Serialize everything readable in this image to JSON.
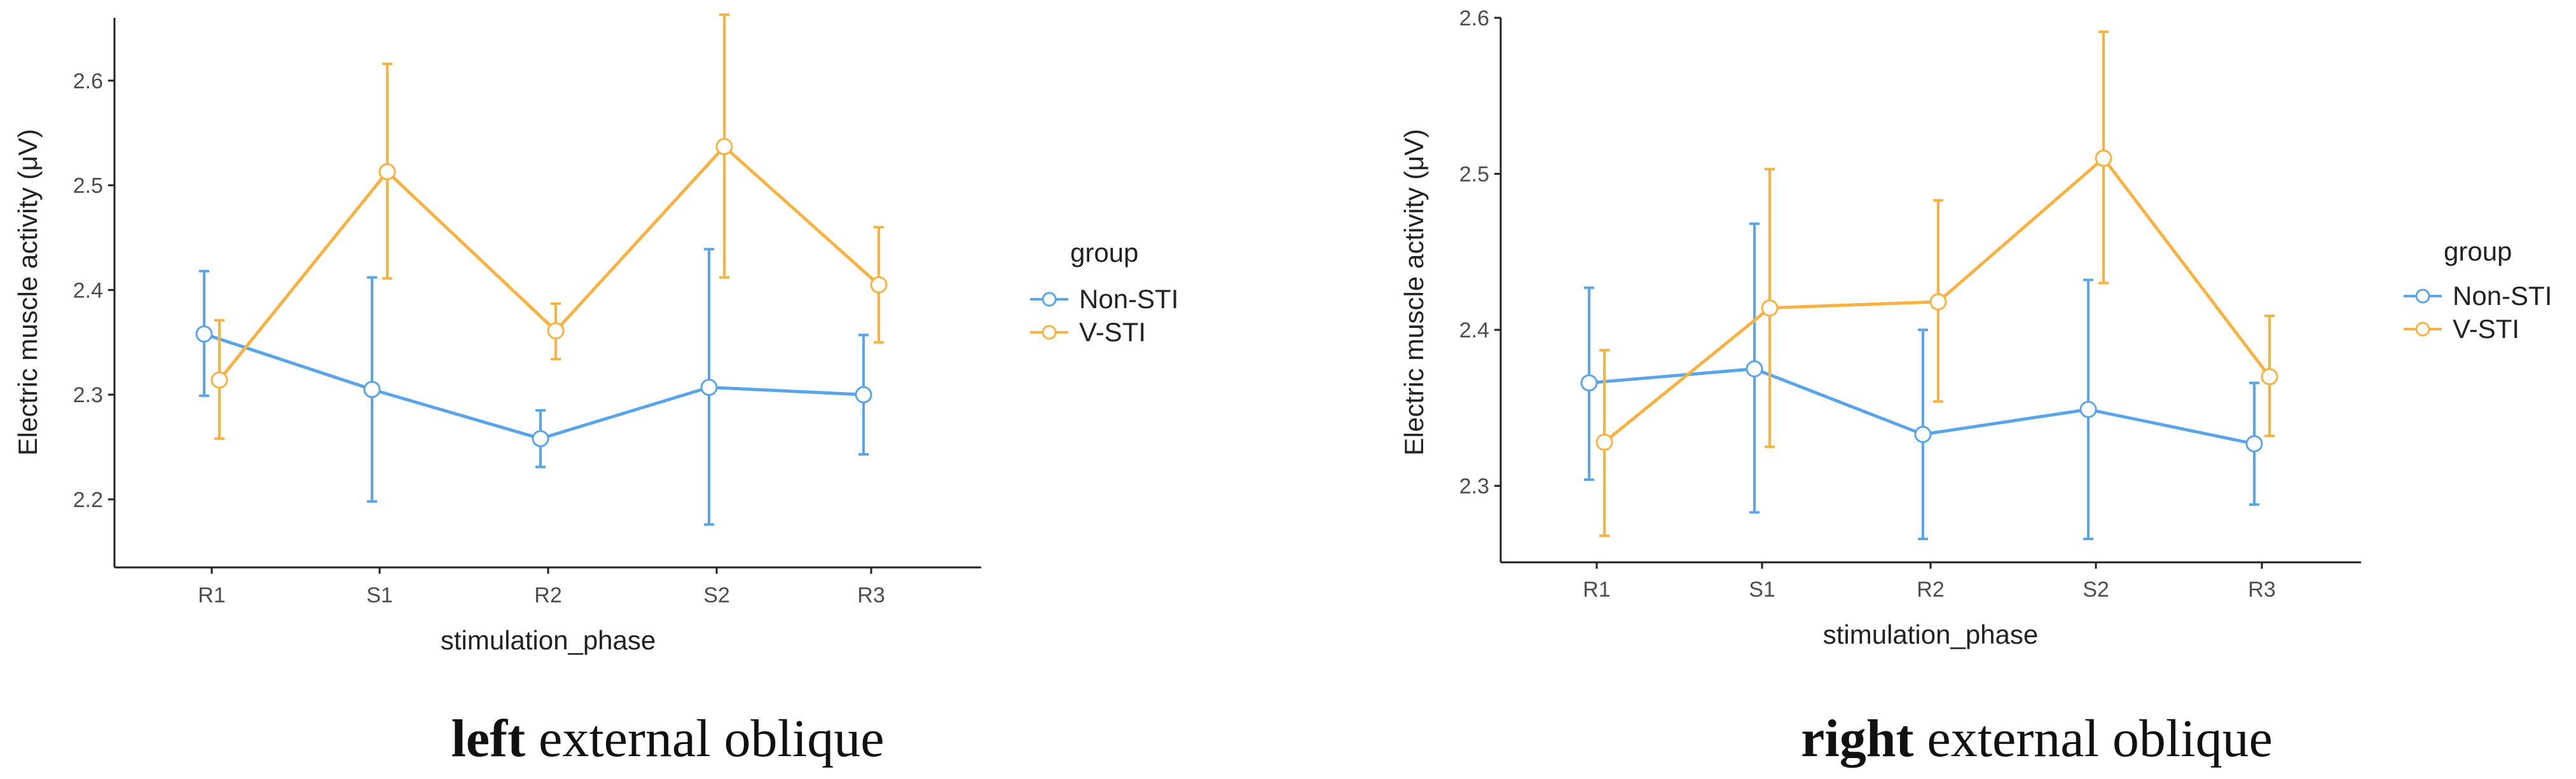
{
  "colors": {
    "non_sti": "#5aa5ea",
    "v_sti": "#f7b23f",
    "axis": "#222222"
  },
  "legend": {
    "title": "group",
    "items": [
      {
        "label": "Non-STI",
        "color": "#5aa5ea"
      },
      {
        "label": "V-STI",
        "color": "#f7b23f"
      }
    ]
  },
  "chart_data": [
    {
      "type": "line",
      "caption_bold": "left",
      "caption_rest": " external oblique",
      "xlabel": "stimulation_phase",
      "ylabel": "Electric muscle activity (μV)",
      "categories": [
        "R1",
        "S1",
        "R2",
        "S2",
        "R3"
      ],
      "ylim": [
        2.135,
        2.66
      ],
      "yticks": [
        2.2,
        2.3,
        2.4,
        2.5,
        2.6
      ],
      "ytick_labels": [
        "2.2",
        "2.3",
        "2.4",
        "2.5",
        "2.6"
      ],
      "series": [
        {
          "name": "Non-STI",
          "values": [
            2.358,
            2.305,
            2.258,
            2.307,
            2.3
          ],
          "lower": [
            2.299,
            2.198,
            2.231,
            2.176,
            2.243
          ],
          "upper": [
            2.418,
            2.412,
            2.285,
            2.439,
            2.357
          ]
        },
        {
          "name": "V-STI",
          "values": [
            2.314,
            2.513,
            2.361,
            2.537,
            2.405
          ],
          "lower": [
            2.258,
            2.411,
            2.334,
            2.412,
            2.35
          ],
          "upper": [
            2.371,
            2.616,
            2.387,
            2.663,
            2.46
          ]
        }
      ]
    },
    {
      "type": "line",
      "caption_bold": "right",
      "caption_rest": " external oblique",
      "xlabel": "stimulation_phase",
      "ylabel": "Electric muscle activity (μV)",
      "categories": [
        "R1",
        "S1",
        "R2",
        "S2",
        "R3"
      ],
      "ylim": [
        2.251,
        2.6
      ],
      "yticks": [
        2.3,
        2.4,
        2.5,
        2.6
      ],
      "ytick_labels": [
        "2.3",
        "2.4",
        "2.5",
        "2.6"
      ],
      "series": [
        {
          "name": "Non-STI",
          "values": [
            2.366,
            2.375,
            2.333,
            2.349,
            2.327
          ],
          "lower": [
            2.304,
            2.283,
            2.266,
            2.266,
            2.288
          ],
          "upper": [
            2.427,
            2.468,
            2.4,
            2.432,
            2.366
          ]
        },
        {
          "name": "V-STI",
          "values": [
            2.328,
            2.414,
            2.418,
            2.51,
            2.37
          ],
          "lower": [
            2.268,
            2.325,
            2.354,
            2.43,
            2.332
          ],
          "upper": [
            2.387,
            2.503,
            2.483,
            2.591,
            2.409
          ]
        }
      ]
    }
  ]
}
